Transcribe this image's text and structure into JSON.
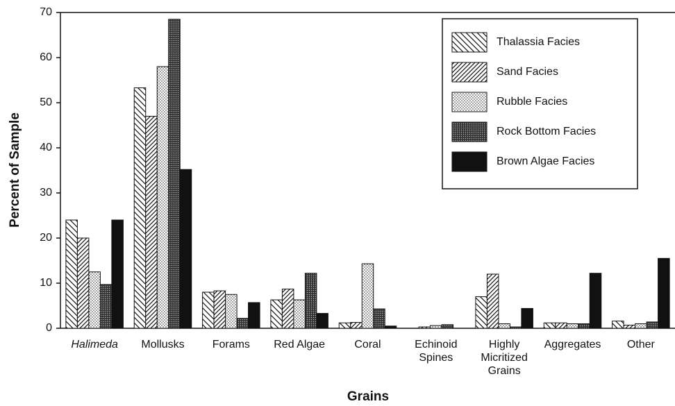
{
  "chart_data": {
    "type": "bar",
    "x_label": "Grains",
    "y_label": "Percent of Sample",
    "categories": [
      "Halimeda",
      "Mollusks",
      "Forams",
      "Red Algae",
      "Coral",
      "Echinoid\nSpines",
      "Highly\nMicritized\nGrains",
      "Aggregates",
      "Other"
    ],
    "series": [
      {
        "name": "Thalassia Facies",
        "color": "#111111",
        "pattern": "backslash",
        "values": [
          24,
          53.3,
          8,
          6.3,
          1.2,
          0,
          7,
          1.2,
          1.6
        ]
      },
      {
        "name": "Sand Facies",
        "color": "#111111",
        "pattern": "slash",
        "values": [
          20,
          47,
          8.3,
          8.7,
          1.3,
          0.3,
          12,
          1.2,
          0.7
        ]
      },
      {
        "name": "Rubble Facies",
        "color": "#111111",
        "pattern": "dots",
        "values": [
          12.5,
          58,
          7.5,
          6.3,
          14.3,
          0.6,
          1,
          1,
          1
        ]
      },
      {
        "name": "Rock Bottom Facies",
        "color": "#111111",
        "pattern": "dense",
        "values": [
          9.7,
          68.5,
          2.2,
          12.2,
          4.3,
          0.8,
          0.3,
          1,
          1.4
        ]
      },
      {
        "name": "Brown Algae Facies",
        "color": "#111111",
        "pattern": "solid",
        "values": [
          24,
          35.2,
          5.7,
          3.3,
          0.5,
          0,
          4.4,
          12.2,
          15.5
        ]
      }
    ],
    "ylim": [
      0,
      70
    ],
    "yticks": [
      0,
      10,
      20,
      30,
      40,
      50,
      60,
      70
    ],
    "legend": "upper right"
  }
}
